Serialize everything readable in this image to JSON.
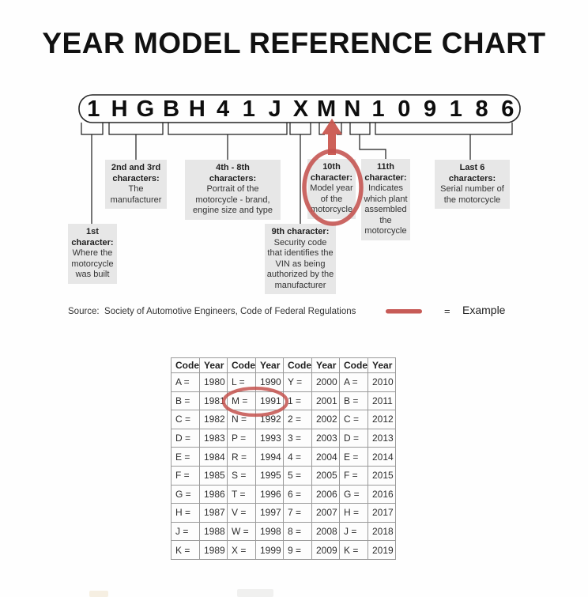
{
  "title": "YEAR MODEL REFERENCE CHART",
  "vin": {
    "characters": [
      "1",
      "H",
      "G",
      "B",
      "H",
      "4",
      "1",
      "J",
      "X",
      "M",
      "N",
      "1",
      "0",
      "9",
      "1",
      "8",
      "6"
    ]
  },
  "callouts": {
    "c1": {
      "title": "1st\ncharacter:",
      "body": "Where the\nmotorcycle\nwas built"
    },
    "c2": {
      "title": "2nd and 3rd\ncharacters:",
      "body": "The\nmanufacturer"
    },
    "c3": {
      "title": "4th - 8th\ncharacters:",
      "body": "Portrait of the\nmotorcycle - brand,\nengine size and type"
    },
    "c4": {
      "title": "9th character:",
      "body": "Security code\nthat identifies the\nVIN as being\nauthorized by the\nmanufacturer"
    },
    "c5": {
      "title": "10th\ncharacter:",
      "body": "Model year\nof the\nmotorcycle"
    },
    "c6": {
      "title": "11th\ncharacter:",
      "body": "Indicates\nwhich plant\nassembled\nthe\nmotorcycle"
    },
    "c7": {
      "title": "Last 6\ncharacters:",
      "body": "Serial number of\nthe motorcycle"
    }
  },
  "source_line": "Source:  Society of Automotive Engineers, Code of Federal Regulations",
  "legend": {
    "equals": "=",
    "label": "Example"
  },
  "colors": {
    "accent_red": "#c4524e",
    "callout_bg": "#e7e7e7",
    "grid_gray": "#9a9a9a"
  },
  "table": {
    "headers": [
      "Code",
      "Year",
      "Code",
      "Year",
      "Code",
      "Year",
      "Code",
      "Year"
    ],
    "rows": [
      [
        "A =",
        "1980",
        "L =",
        "1990",
        "Y =",
        "2000",
        "A =",
        "2010"
      ],
      [
        "B =",
        "1981",
        "M =",
        "1991",
        "1 =",
        "2001",
        "B =",
        "2011"
      ],
      [
        "C =",
        "1982",
        "N =",
        "1992",
        "2 =",
        "2002",
        "C =",
        "2012"
      ],
      [
        "D =",
        "1983",
        "P =",
        "1993",
        "3 =",
        "2003",
        "D =",
        "2013"
      ],
      [
        "E =",
        "1984",
        "R =",
        "1994",
        "4 =",
        "2004",
        "E =",
        "2014"
      ],
      [
        "F =",
        "1985",
        "S =",
        "1995",
        "5 =",
        "2005",
        "F =",
        "2015"
      ],
      [
        "G =",
        "1986",
        "T =",
        "1996",
        "6 =",
        "2006",
        "G =",
        "2016"
      ],
      [
        "H =",
        "1987",
        "V =",
        "1997",
        "7 =",
        "2007",
        "H =",
        "2017"
      ],
      [
        "J =",
        "1988",
        "W =",
        "1998",
        "8 =",
        "2008",
        "J =",
        "2018"
      ],
      [
        "K =",
        "1989",
        "X =",
        "1999",
        "9 =",
        "2009",
        "K =",
        "2019"
      ]
    ],
    "highlighted_pair": "M = 1991"
  }
}
